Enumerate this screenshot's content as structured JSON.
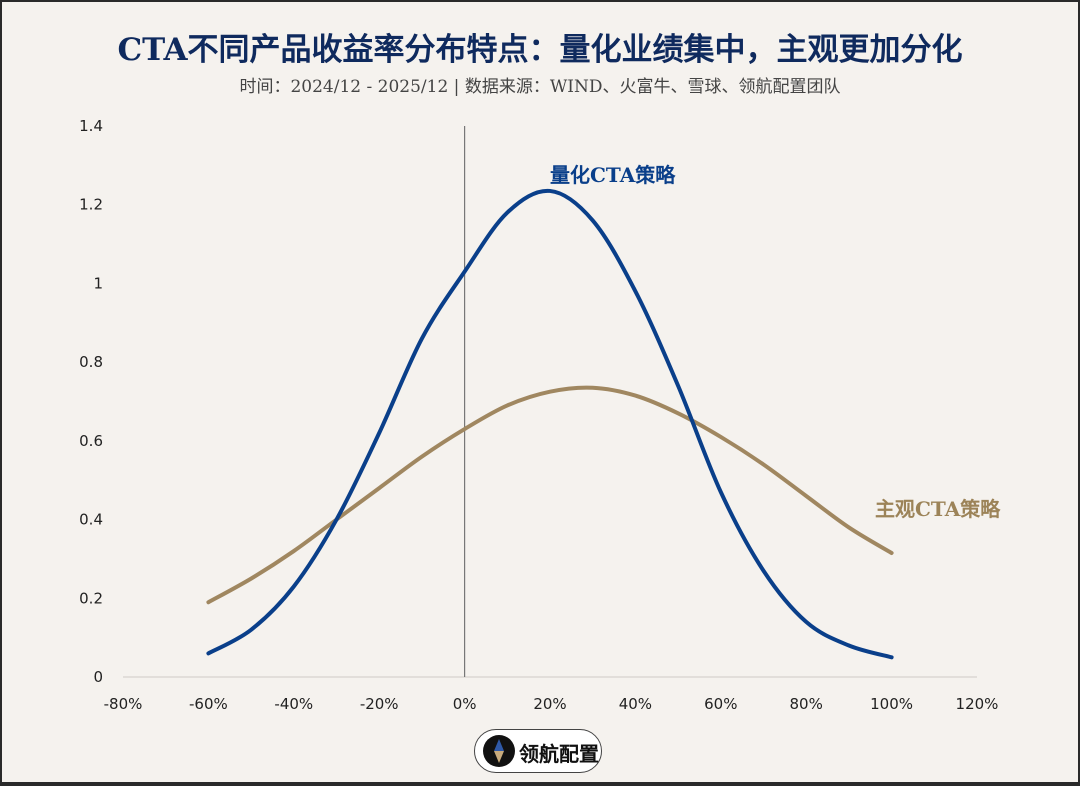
{
  "header": {
    "title": "CTA不同产品收益率分布特点：量化业绩集中，主观更加分化",
    "subtitle": "时间：2024/12 - 2025/12 | 数据来源：WIND、火富牛、雪球、领航配置团队"
  },
  "labels": {
    "quant": "量化CTA策略",
    "subjective": "主观CTA策略"
  },
  "logo": {
    "text": "领航配置",
    "icon": "compass-diamond-icon"
  },
  "colors": {
    "quant": "#0a3f8a",
    "subjective": "#a08760",
    "background": "#f5f2ee",
    "title": "#0f2a5e"
  },
  "y_ticks": [
    "0",
    "0.2",
    "0.4",
    "0.6",
    "0.8",
    "1",
    "1.2",
    "1.4"
  ],
  "x_ticks": [
    "-80%",
    "-60%",
    "-40%",
    "-20%",
    "0%",
    "20%",
    "40%",
    "60%",
    "80%",
    "100%",
    "120%"
  ],
  "chart_data": {
    "type": "line",
    "title": "CTA不同产品收益率分布特点：量化业绩集中，主观更加分化",
    "subtitle": "时间：2024/12 - 2025/12 | 数据来源：WIND、火富牛、雪球、领航配置团队",
    "xlabel": "",
    "ylabel": "",
    "xlim": [
      -0.8,
      1.2
    ],
    "ylim": [
      0,
      1.4
    ],
    "grid": false,
    "legend_position": "inline annotations",
    "x": [
      -0.6,
      -0.5,
      -0.4,
      -0.3,
      -0.2,
      -0.1,
      0.0,
      0.1,
      0.2,
      0.3,
      0.4,
      0.5,
      0.6,
      0.7,
      0.8,
      0.9,
      1.0
    ],
    "series": [
      {
        "name": "量化CTA策略",
        "values": [
          0.06,
          0.12,
          0.23,
          0.4,
          0.62,
          0.86,
          1.03,
          1.18,
          1.235,
          1.16,
          0.98,
          0.74,
          0.47,
          0.27,
          0.14,
          0.08,
          0.05
        ]
      },
      {
        "name": "主观CTA策略",
        "values": [
          0.19,
          0.25,
          0.32,
          0.4,
          0.48,
          0.56,
          0.63,
          0.69,
          0.725,
          0.735,
          0.715,
          0.67,
          0.61,
          0.54,
          0.46,
          0.38,
          0.315
        ]
      }
    ],
    "annotations": [
      {
        "text": "量化CTA策略",
        "x": 0.3,
        "y": 1.28
      },
      {
        "text": "主观CTA策略",
        "x": 1.15,
        "y": 0.42
      }
    ],
    "vertical_reference_line_x": 0.0
  }
}
